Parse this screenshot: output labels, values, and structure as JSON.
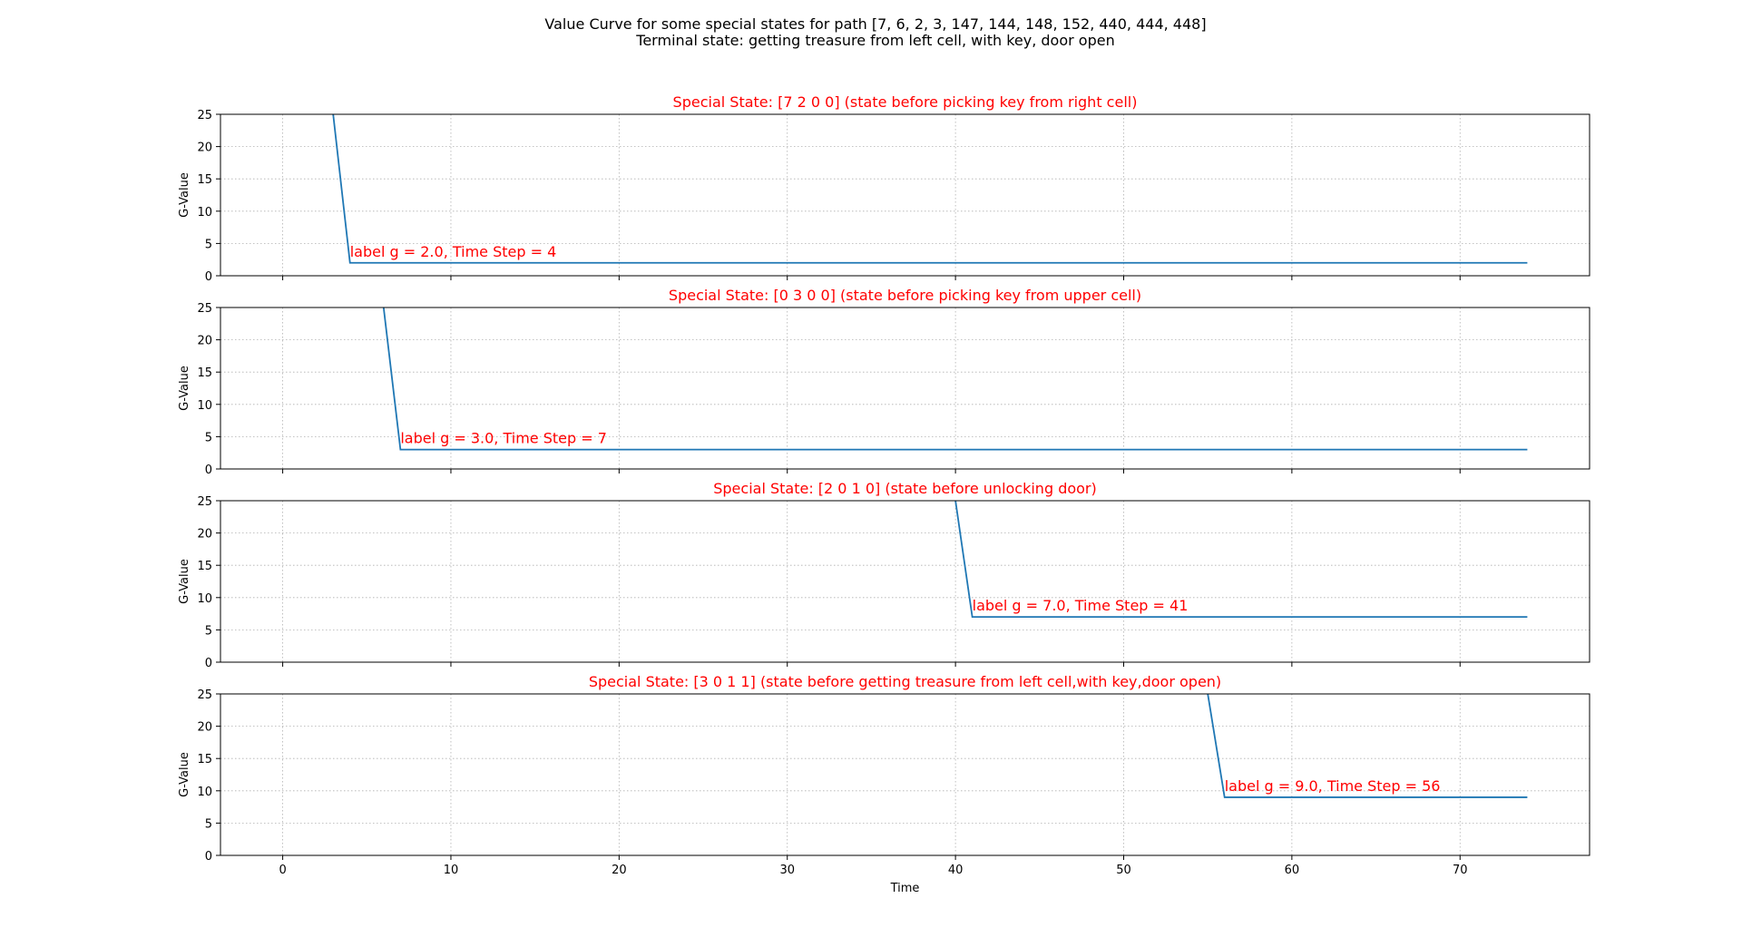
{
  "figure": {
    "title_line1": "Value Curve for some special states for path [7, 6, 2, 3, 147, 144, 148, 152, 440, 444, 448]",
    "title_line2": "Terminal state: getting treasure from left cell, with key, door open"
  },
  "colors": {
    "line": "#1f77b4",
    "title": "#ff0000",
    "annotation": "#ff0000"
  },
  "chart_data": [
    {
      "type": "line",
      "title": "Special State: [7 2 0 0] (state before picking key from right cell)",
      "ylabel": "G-Value",
      "xlabel": "",
      "xlim": [
        -3.7,
        77.7
      ],
      "ylim": [
        0,
        25
      ],
      "xticks": [
        0,
        10,
        20,
        30,
        40,
        50,
        60,
        70
      ],
      "yticks": [
        0,
        5,
        10,
        15,
        20,
        25
      ],
      "show_xticklabels": false,
      "grid": true,
      "series": [
        {
          "x": [
            3,
            4,
            74
          ],
          "y": [
            25,
            2,
            2
          ]
        }
      ],
      "annotation": {
        "text": "label g = 2.0, Time Step = 4",
        "x": 4,
        "y": 2
      }
    },
    {
      "type": "line",
      "title": "Special State: [0 3 0 0] (state before picking key from upper cell)",
      "ylabel": "G-Value",
      "xlabel": "",
      "xlim": [
        -3.7,
        77.7
      ],
      "ylim": [
        0,
        25
      ],
      "xticks": [
        0,
        10,
        20,
        30,
        40,
        50,
        60,
        70
      ],
      "yticks": [
        0,
        5,
        10,
        15,
        20,
        25
      ],
      "show_xticklabels": false,
      "grid": true,
      "series": [
        {
          "x": [
            6,
            7,
            74
          ],
          "y": [
            25,
            3,
            3
          ]
        }
      ],
      "annotation": {
        "text": "label g = 3.0, Time Step = 7",
        "x": 7,
        "y": 3
      }
    },
    {
      "type": "line",
      "title": "Special State: [2 0 1 0] (state before unlocking door)",
      "ylabel": "G-Value",
      "xlabel": "",
      "xlim": [
        -3.7,
        77.7
      ],
      "ylim": [
        0,
        25
      ],
      "xticks": [
        0,
        10,
        20,
        30,
        40,
        50,
        60,
        70
      ],
      "yticks": [
        0,
        5,
        10,
        15,
        20,
        25
      ],
      "show_xticklabels": false,
      "grid": true,
      "series": [
        {
          "x": [
            40,
            41,
            74
          ],
          "y": [
            25,
            7,
            7
          ]
        }
      ],
      "annotation": {
        "text": "label g = 7.0, Time Step = 41",
        "x": 41,
        "y": 7
      }
    },
    {
      "type": "line",
      "title": "Special State: [3 0 1 1] (state before getting treasure from left cell,with key,door open)",
      "ylabel": "G-Value",
      "xlabel": "Time",
      "xlim": [
        -3.7,
        77.7
      ],
      "ylim": [
        0,
        25
      ],
      "xticks": [
        0,
        10,
        20,
        30,
        40,
        50,
        60,
        70
      ],
      "yticks": [
        0,
        5,
        10,
        15,
        20,
        25
      ],
      "show_xticklabels": true,
      "grid": true,
      "series": [
        {
          "x": [
            55,
            56,
            74
          ],
          "y": [
            25,
            9,
            9
          ]
        }
      ],
      "annotation": {
        "text": "label g = 9.0, Time Step = 56",
        "x": 56,
        "y": 9
      }
    }
  ]
}
